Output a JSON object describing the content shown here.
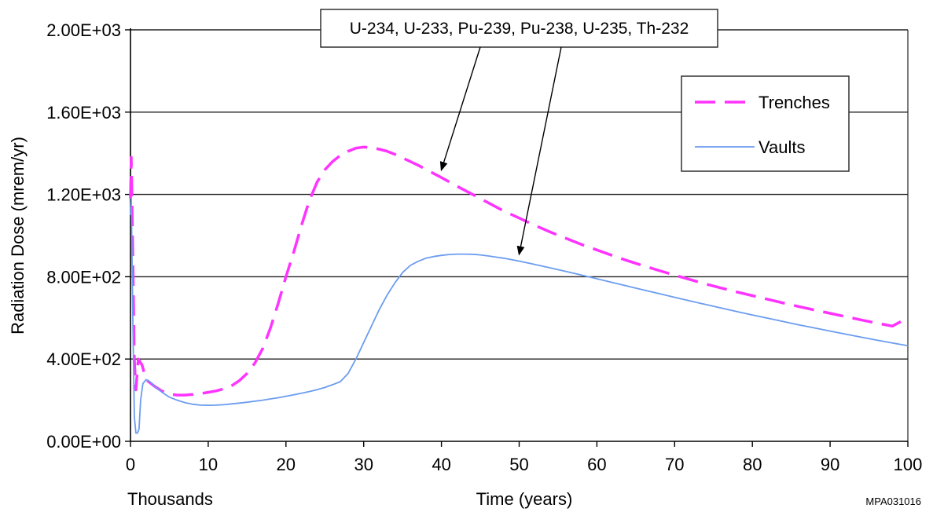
{
  "chart_data": {
    "type": "line",
    "title": "",
    "xlabel": "Time (years)",
    "x_multiplier_label": "Thousands",
    "ylabel": "Radiation Dose (mrem/yr)",
    "xlim": [
      0,
      100
    ],
    "ylim": [
      0,
      2000
    ],
    "x_ticks": [
      0,
      10,
      20,
      30,
      40,
      50,
      60,
      70,
      80,
      90,
      100
    ],
    "x_tick_labels": [
      "0",
      "10",
      "20",
      "30",
      "40",
      "50",
      "60",
      "70",
      "80",
      "90",
      "100"
    ],
    "y_ticks": [
      0,
      400,
      800,
      1200,
      1600,
      2000
    ],
    "y_tick_labels": [
      "0.00E+00",
      "4.00E+02",
      "8.00E+02",
      "1.20E+03",
      "1.60E+03",
      "2.00E+03"
    ],
    "grid": "horizontal",
    "legend_position": "top-right",
    "series": [
      {
        "name": "Trenches",
        "color": "#ff33ff",
        "dash": "dashed",
        "x": [
          0,
          0.1,
          0.3,
          0.5,
          0.7,
          1.0,
          1.5,
          2,
          3,
          4,
          5,
          6,
          7,
          8,
          9,
          10,
          11,
          12,
          13,
          14,
          15,
          16,
          17,
          18,
          19,
          20,
          21,
          22,
          23,
          24,
          25,
          26,
          27,
          28,
          29,
          30,
          31,
          32,
          33,
          34,
          35,
          36,
          37,
          38,
          39,
          40,
          42,
          44,
          46,
          48,
          50,
          52,
          54,
          56,
          58,
          60,
          62,
          64,
          66,
          68,
          70,
          72,
          74,
          76,
          78,
          80,
          82,
          84,
          86,
          88,
          90,
          92,
          94,
          96,
          98,
          100
        ],
        "y": [
          1180,
          1380,
          900,
          400,
          250,
          400,
          370,
          300,
          270,
          245,
          230,
          225,
          225,
          228,
          232,
          238,
          245,
          255,
          270,
          295,
          330,
          380,
          450,
          550,
          670,
          800,
          920,
          1050,
          1170,
          1260,
          1320,
          1360,
          1390,
          1410,
          1425,
          1430,
          1428,
          1420,
          1410,
          1395,
          1378,
          1360,
          1342,
          1322,
          1302,
          1282,
          1240,
          1200,
          1160,
          1120,
          1085,
          1050,
          1017,
          987,
          957,
          930,
          903,
          877,
          853,
          830,
          808,
          786,
          765,
          745,
          726,
          708,
          690,
          672,
          655,
          638,
          622,
          606,
          590,
          575,
          560,
          600
        ]
      },
      {
        "name": "Vaults",
        "color": "#6b9cf0",
        "dash": "solid",
        "x": [
          0,
          0.1,
          0.3,
          0.5,
          0.7,
          0.9,
          1.1,
          1.3,
          1.6,
          2,
          2.5,
          3,
          4,
          5,
          6,
          7,
          8,
          9,
          10,
          11,
          12,
          13,
          14,
          15,
          16,
          17,
          18,
          19,
          20,
          21,
          22,
          23,
          24,
          25,
          26,
          27,
          28,
          29,
          30,
          31,
          32,
          33,
          34,
          35,
          36,
          37,
          38,
          39,
          40,
          41,
          42,
          43,
          44,
          45,
          46,
          48,
          50,
          52,
          54,
          56,
          58,
          60,
          62,
          64,
          66,
          68,
          70,
          72,
          74,
          76,
          78,
          80,
          82,
          84,
          86,
          88,
          90,
          92,
          94,
          96,
          98,
          100
        ],
        "y": [
          1100,
          1180,
          600,
          120,
          40,
          40,
          60,
          200,
          280,
          300,
          290,
          270,
          240,
          215,
          200,
          188,
          180,
          176,
          175,
          176,
          178,
          182,
          186,
          190,
          195,
          200,
          206,
          212,
          219,
          226,
          234,
          242,
          251,
          262,
          275,
          290,
          330,
          400,
          480,
          560,
          640,
          710,
          770,
          820,
          855,
          875,
          890,
          898,
          904,
          908,
          910,
          910,
          909,
          906,
          901,
          890,
          876,
          860,
          843,
          826,
          808,
          790,
          772,
          754,
          736,
          718,
          700,
          682,
          665,
          648,
          631,
          614,
          598,
          582,
          566,
          551,
          536,
          521,
          506,
          492,
          478,
          465
        ]
      }
    ],
    "annotations": [
      {
        "text": "U-234, U-233, Pu-239, Pu-238, U-235, Th-232",
        "arrows": [
          {
            "target_x": 40,
            "target_y": 1320
          },
          {
            "target_x": 50,
            "target_y": 910
          }
        ]
      }
    ],
    "figure_code": "MPA031016"
  }
}
